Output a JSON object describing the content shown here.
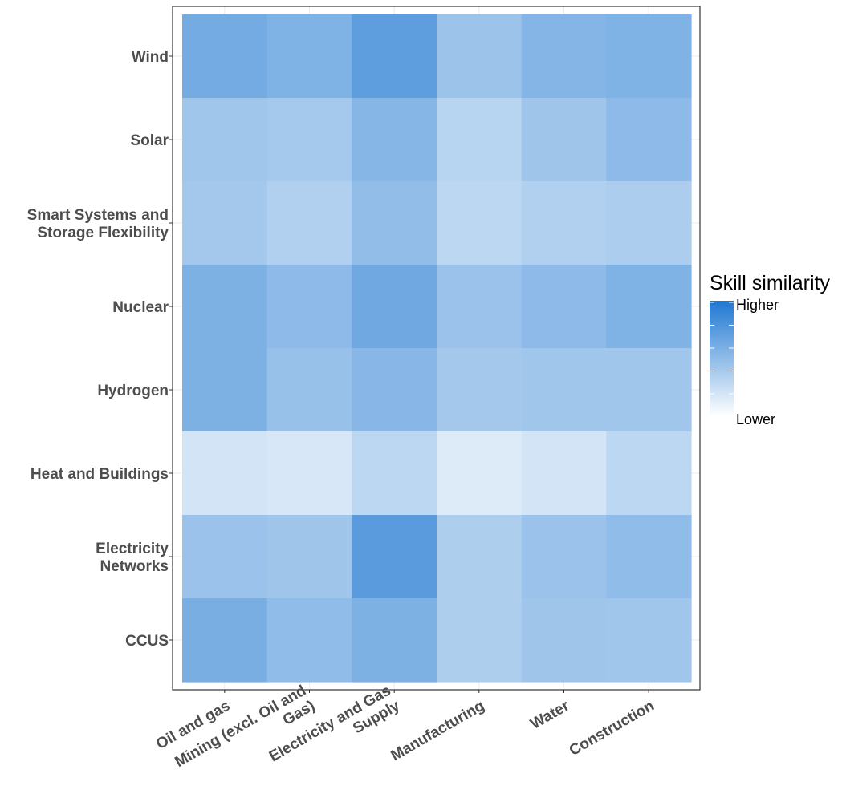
{
  "chart_data": {
    "type": "heatmap",
    "title": "",
    "xlabel": "",
    "ylabel": "",
    "x_categories": [
      [
        "Oil and gas"
      ],
      [
        "Mining (excl. Oil and",
        "Gas)"
      ],
      [
        "Electricity and Gas",
        "Supply"
      ],
      [
        "Manufacturing"
      ],
      [
        "Water"
      ],
      [
        "Construction"
      ]
    ],
    "y_categories": [
      [
        "Wind"
      ],
      [
        "Solar"
      ],
      [
        "Smart Systems and",
        "Storage Flexibility"
      ],
      [
        "Nuclear"
      ],
      [
        "Hydrogen"
      ],
      [
        "Heat and Buildings"
      ],
      [
        "Electricity",
        "Networks"
      ],
      [
        "CCUS"
      ]
    ],
    "values": [
      [
        0.62,
        0.57,
        0.72,
        0.44,
        0.55,
        0.57
      ],
      [
        0.42,
        0.4,
        0.54,
        0.32,
        0.43,
        0.51
      ],
      [
        0.41,
        0.35,
        0.49,
        0.3,
        0.35,
        0.37
      ],
      [
        0.58,
        0.51,
        0.64,
        0.45,
        0.51,
        0.57
      ],
      [
        0.58,
        0.46,
        0.53,
        0.41,
        0.42,
        0.42
      ],
      [
        0.2,
        0.18,
        0.3,
        0.15,
        0.2,
        0.3
      ],
      [
        0.45,
        0.43,
        0.74,
        0.36,
        0.45,
        0.5
      ],
      [
        0.6,
        0.5,
        0.58,
        0.36,
        0.43,
        0.42
      ]
    ],
    "color_low": "#ffffff",
    "color_high": "#1f78d1",
    "legend": {
      "title": "Skill similarity",
      "high_label": "Higher",
      "low_label": "Lower",
      "placement": "right"
    },
    "grid": true
  }
}
